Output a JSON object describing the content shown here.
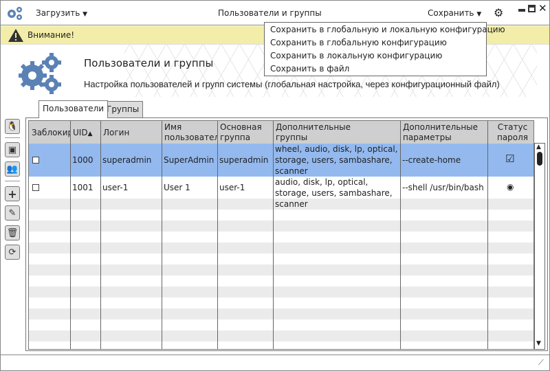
{
  "titlebar": {
    "load_label": "Загрузить",
    "title": "Пользователи и группы",
    "save_label": "Сохранить"
  },
  "save_menu": {
    "items": [
      "Сохранить в глобальную и локальную конфигурацию",
      "Сохранить в глобальную конфигурацию",
      "Сохранить в локальную конфигурацию",
      "Сохранить в файл"
    ]
  },
  "warning": {
    "text": "Внимание!"
  },
  "header": {
    "title": "Пользователи и группы",
    "subtitle": "Настройка пользователей и групп системы (глобальная настройка, через конфигурационный файл)"
  },
  "tabs": [
    {
      "label": "Пользователи",
      "active": true
    },
    {
      "label": "Группы",
      "active": false
    }
  ],
  "table": {
    "columns": [
      "Заблокир",
      "UID",
      "Логин",
      "Имя пользователя",
      "Основная группа",
      "Дополнительные группы",
      "Дополнительные параметры",
      "Статус пароля"
    ],
    "sort_column": "UID",
    "sort_dir": "asc",
    "rows": [
      {
        "locked": false,
        "uid": "1000",
        "login": "superadmin",
        "name": "SuperAdmin",
        "group": "superadmin",
        "extra_groups": "wheel, audio, disk, lp, optical, storage, users, sambashare, scanner",
        "params": "--create-home",
        "password_status": "checked",
        "selected": true
      },
      {
        "locked": false,
        "uid": "1001",
        "login": "user-1",
        "name": "User 1",
        "group": "user-1",
        "extra_groups": "audio, disk, lp, optical, storage, users, sambashare, scanner",
        "params": "--shell /usr/bin/bash",
        "password_status": "radio",
        "selected": false
      }
    ]
  },
  "colors": {
    "accent": "#5b82b5",
    "selection": "#93b9ef",
    "warning_bg": "#f2eda8"
  }
}
